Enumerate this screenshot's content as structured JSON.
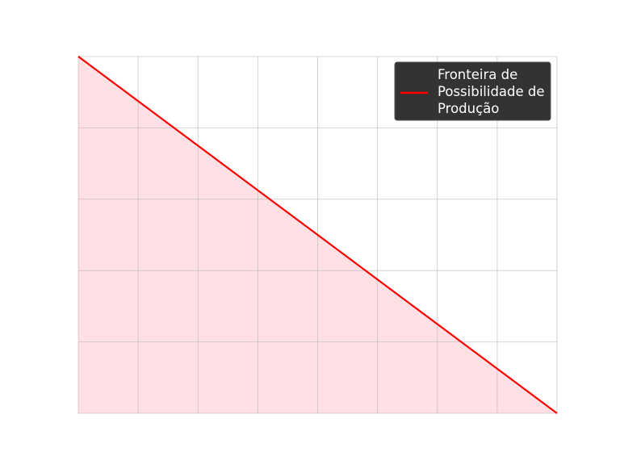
{
  "chart_data": {
    "type": "area",
    "title": "",
    "xlabel": "",
    "ylabel": "",
    "xlim": [
      0,
      8
    ],
    "ylim": [
      0,
      5
    ],
    "grid": true,
    "legend_position": "top-right",
    "series": [
      {
        "name": "Fronteira de Possibilidade de Produção",
        "x": [
          0,
          8
        ],
        "y": [
          5,
          0
        ],
        "color": "#ff0000",
        "fill": "#ffe1e5"
      }
    ],
    "legend_lines": [
      "Fronteira de",
      "Possibilidade de",
      "Produção"
    ],
    "legend_background": "#333333"
  }
}
